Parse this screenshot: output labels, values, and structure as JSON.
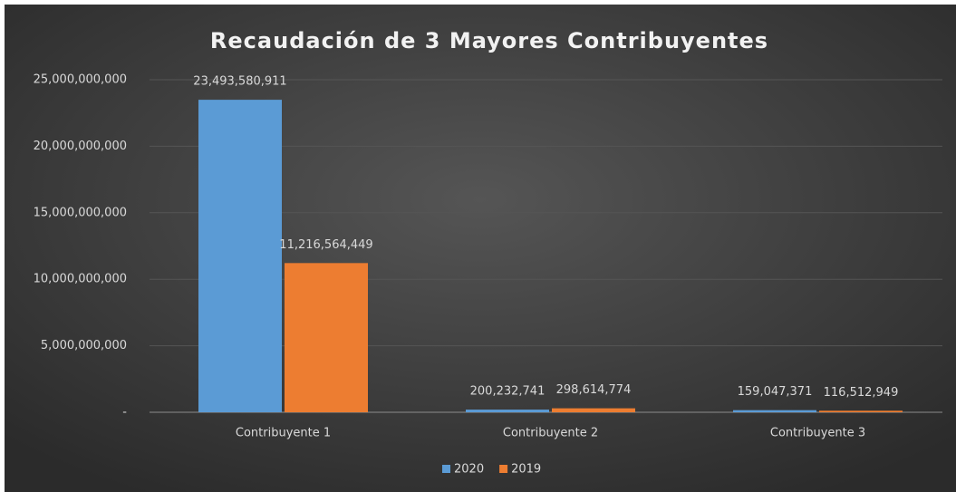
{
  "chart_data": {
    "type": "bar",
    "title": "Recaudación de 3 Mayores Contribuyentes",
    "categories": [
      "Contribuyente 1",
      "Contribuyente 2",
      "Contribuyente 3"
    ],
    "series": [
      {
        "name": "2020",
        "color": "#5b9bd5",
        "values": [
          23493580911,
          200232741,
          159047371
        ],
        "value_labels": [
          "23,493,580,911",
          "200,232,741",
          "159,047,371"
        ]
      },
      {
        "name": "2019",
        "color": "#ed7d31",
        "values": [
          11216564449,
          298614774,
          116512949
        ],
        "value_labels": [
          "11,216,564,449",
          "298,614,774",
          "116,512,949"
        ]
      }
    ],
    "ylim": [
      0,
      25000000000
    ],
    "yticks": [
      {
        "value": 0,
        "label": "-"
      },
      {
        "value": 5000000000,
        "label": "5,000,000,000"
      },
      {
        "value": 10000000000,
        "label": "10,000,000,000"
      },
      {
        "value": 15000000000,
        "label": "15,000,000,000"
      },
      {
        "value": 20000000000,
        "label": "20,000,000,000"
      },
      {
        "value": 25000000000,
        "label": "25,000,000,000"
      }
    ],
    "grid": true,
    "legend": "bottom"
  }
}
